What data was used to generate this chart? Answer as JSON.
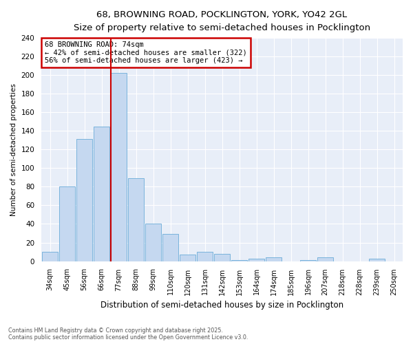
{
  "title1": "68, BROWNING ROAD, POCKLINGTON, YORK, YO42 2GL",
  "title2": "Size of property relative to semi-detached houses in Pocklington",
  "xlabel": "Distribution of semi-detached houses by size in Pocklington",
  "ylabel": "Number of semi-detached properties",
  "categories": [
    "34sqm",
    "45sqm",
    "56sqm",
    "66sqm",
    "77sqm",
    "88sqm",
    "99sqm",
    "110sqm",
    "120sqm",
    "131sqm",
    "142sqm",
    "153sqm",
    "164sqm",
    "174sqm",
    "185sqm",
    "196sqm",
    "207sqm",
    "218sqm",
    "228sqm",
    "239sqm",
    "250sqm"
  ],
  "values": [
    10,
    80,
    131,
    145,
    202,
    89,
    40,
    29,
    7,
    10,
    8,
    1,
    3,
    4,
    0,
    1,
    4,
    0,
    0,
    3,
    0
  ],
  "bar_color": "#c5d8f0",
  "bar_edge_color": "#6aacd8",
  "vline_color": "#cc0000",
  "annotation_title": "68 BROWNING ROAD: 74sqm",
  "annotation_line1": "← 42% of semi-detached houses are smaller (322)",
  "annotation_line2": "56% of semi-detached houses are larger (423) →",
  "annotation_box_color": "white",
  "annotation_box_edge": "#cc0000",
  "ylim": [
    0,
    240
  ],
  "yticks": [
    0,
    20,
    40,
    60,
    80,
    100,
    120,
    140,
    160,
    180,
    200,
    220,
    240
  ],
  "footer": "Contains HM Land Registry data © Crown copyright and database right 2025.\nContains public sector information licensed under the Open Government Licence v3.0.",
  "fig_bg_color": "#ffffff",
  "plot_bg_color": "#e8eef8",
  "grid_color": "#ffffff",
  "title1_fontsize": 10.5,
  "title2_fontsize": 9.5,
  "annotation_fontsize": 7.5,
  "vline_bar_index": 4
}
